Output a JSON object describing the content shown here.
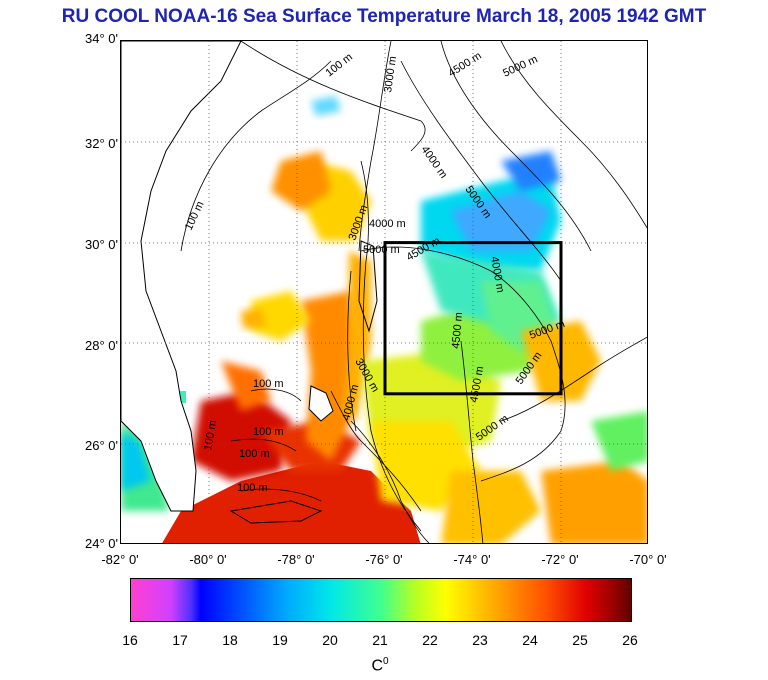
{
  "title": "RU COOL  NOAA-16 Sea Surface Temperature March 18, 2005 1942 GMT",
  "map": {
    "lat_labels": [
      "34° 0'",
      "32° 0'",
      "30° 0'",
      "28° 0'",
      "26° 0'",
      "24° 0'"
    ],
    "lon_labels": [
      "-82° 0'",
      "-80° 0'",
      "-78° 0'",
      "-76° 0'",
      "-74° 0'",
      "-72° 0'",
      "-70° 0'"
    ],
    "lat_range": [
      24,
      34
    ],
    "lon_range": [
      -82,
      -70
    ],
    "study_box": {
      "lon": [
        -76,
        -72
      ],
      "lat": [
        27,
        30
      ]
    },
    "contour_labels": [
      "100 m",
      "100 m",
      "100 m",
      "100 m",
      "100 m",
      "100 m",
      "100 m",
      "3000 m",
      "3000 m",
      "3000 m",
      "4000 m",
      "4000 m",
      "4000 m",
      "4000 m",
      "4500 m",
      "4500 m",
      "4500 m",
      "4500 m",
      "5000 m",
      "5000 m",
      "5000 m",
      "5000 m",
      "5000 m",
      "5000 m"
    ]
  },
  "colorbar": {
    "min": 16,
    "max": 26,
    "ticks": [
      "16",
      "17",
      "18",
      "19",
      "20",
      "21",
      "22",
      "23",
      "24",
      "25",
      "26"
    ],
    "unit": "C",
    "unit_sup": "0"
  }
}
